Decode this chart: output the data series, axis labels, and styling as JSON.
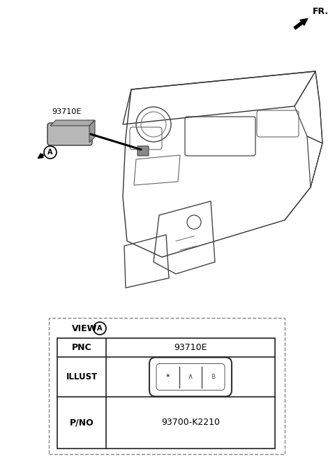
{
  "bg_color": "#ffffff",
  "fr_label": "FR.",
  "part_label": "93710E",
  "view_label": "VIEW",
  "view_circle": "A",
  "circle_A_label": "A",
  "table_pnc_label": "PNC",
  "table_pnc_value": "93710E",
  "table_illust_label": "ILLUST",
  "table_pno_label": "P/NO",
  "table_pno_value": "93700-K2210",
  "line_color": "#222222",
  "dark_line": "#333333",
  "med_line": "#444444",
  "light_line": "#666666"
}
